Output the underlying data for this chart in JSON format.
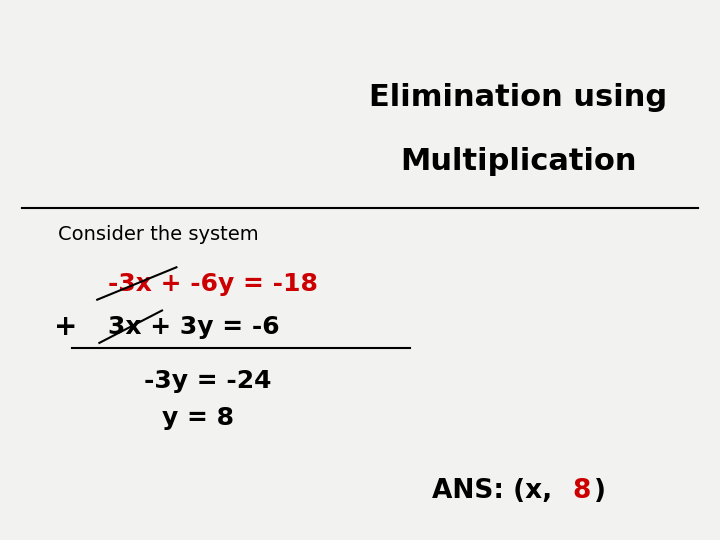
{
  "title_line1": "Elimination using",
  "title_line2": "Multiplication",
  "consider_text": "Consider the system",
  "eq1_parts": [
    {
      "text": "-3x",
      "color": "#cc0000",
      "bold": true
    },
    {
      "text": " + ",
      "color": "#cc0000",
      "bold": true
    },
    {
      "text": "-6y",
      "color": "#cc0000",
      "bold": true
    },
    {
      "text": " = ",
      "color": "#cc0000",
      "bold": true
    },
    {
      "text": "-18",
      "color": "#cc0000",
      "bold": true
    }
  ],
  "plus_sign": "+",
  "eq2_parts": [
    {
      "text": "3x + 3y = -6",
      "color": "#000000",
      "bold": true
    }
  ],
  "result_line1": "-3y = -24",
  "result_line2": "y = 8",
  "ans_parts": [
    {
      "text": "ANS: (x, ",
      "color": "#000000",
      "bold": true
    },
    {
      "text": "8",
      "color": "#cc0000",
      "bold": true
    },
    {
      "text": ")",
      "color": "#000000",
      "bold": true
    }
  ],
  "bg_color": "#f0f0f0",
  "title_color": "#000000",
  "separator_color": "#000000",
  "title_fontsize": 22,
  "body_fontsize": 18,
  "ans_fontsize": 18
}
